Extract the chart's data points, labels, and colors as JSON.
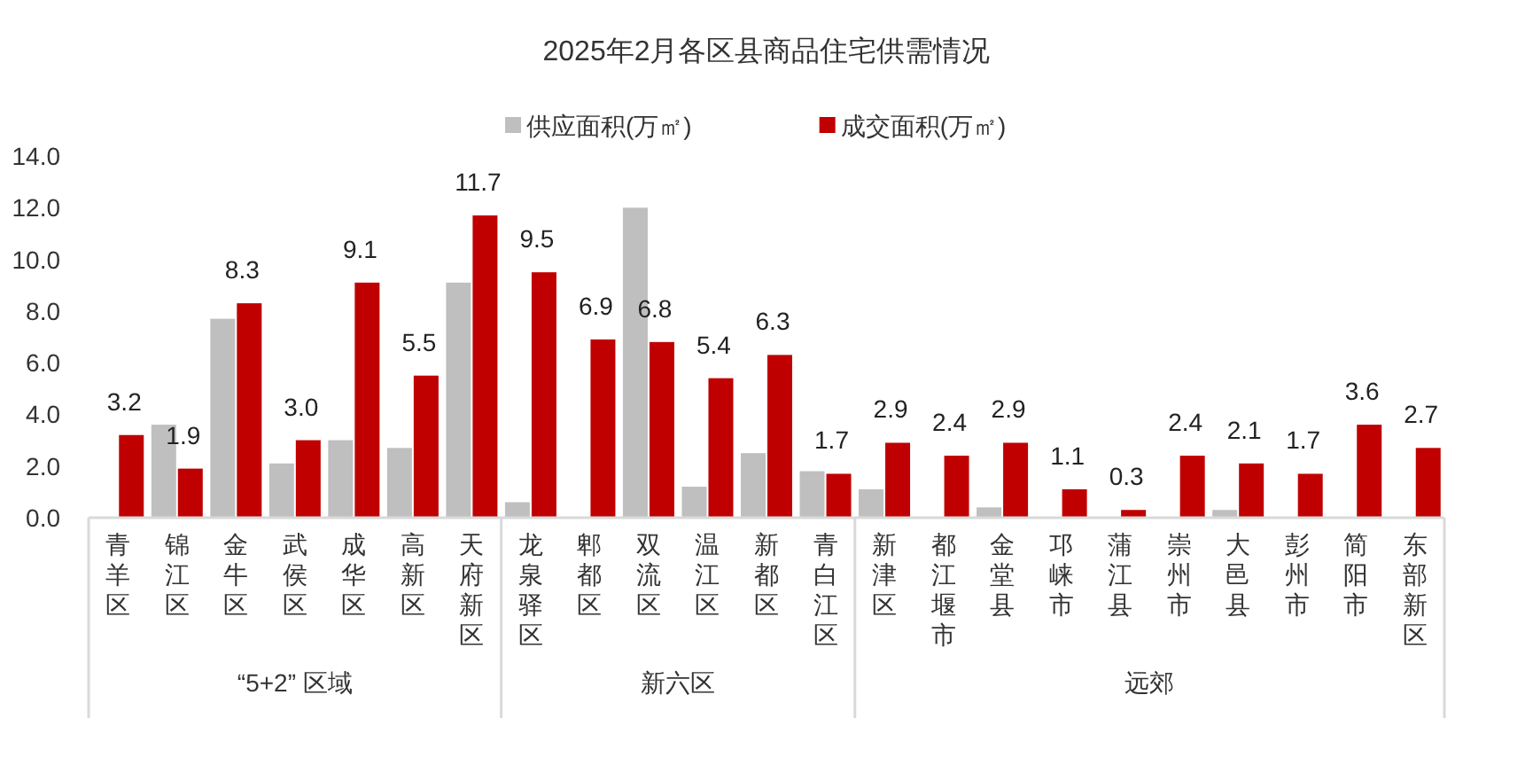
{
  "chart_data": {
    "type": "bar",
    "title": "2025年2月各区县商品住宅供需情况",
    "categories": [
      "青羊区",
      "锦江区",
      "金牛区",
      "武侯区",
      "成华区",
      "高新区",
      "天府新区",
      "龙泉驿区",
      "郫都区",
      "双流区",
      "温江区",
      "新都区",
      "青白江区",
      "新津区",
      "都江堰市",
      "金堂县",
      "邛崃市",
      "蒲江县",
      "崇州市",
      "大邑县",
      "彭州市",
      "简阳市",
      "东部新区"
    ],
    "series": [
      {
        "name": "供应面积(万㎡)",
        "color": "#bfbfbf",
        "values": [
          null,
          3.6,
          7.7,
          2.1,
          3.0,
          2.7,
          9.1,
          0.6,
          null,
          12.0,
          1.2,
          2.5,
          1.8,
          1.1,
          null,
          0.4,
          null,
          null,
          null,
          0.3,
          null,
          null,
          null
        ]
      },
      {
        "name": "成交面积(万㎡)",
        "color": "#c00000",
        "values": [
          3.2,
          1.9,
          8.3,
          3.0,
          9.1,
          5.5,
          11.7,
          9.5,
          6.9,
          6.8,
          5.4,
          6.3,
          1.7,
          2.9,
          2.4,
          2.9,
          1.1,
          0.3,
          2.4,
          2.1,
          1.7,
          3.6,
          2.7
        ],
        "value_labels": [
          "3.2",
          "1.9",
          "8.3",
          "3.0",
          "9.1",
          "5.5",
          "11.7",
          "9.5",
          "6.9",
          "6.8",
          "5.4",
          "6.3",
          "1.7",
          "2.9",
          "2.4",
          "2.9",
          "1.1",
          "0.3",
          "2.4",
          "2.1",
          "1.7",
          "3.6",
          "2.7"
        ]
      }
    ],
    "ylim": [
      0,
      14
    ],
    "yticks": [
      {
        "value": 0,
        "label": "0.0"
      },
      {
        "value": 2,
        "label": "2.0"
      },
      {
        "value": 4,
        "label": "4.0"
      },
      {
        "value": 6,
        "label": "6.0"
      },
      {
        "value": 8,
        "label": "8.0"
      },
      {
        "value": 10,
        "label": "10.0"
      },
      {
        "value": 12,
        "label": "12.0"
      },
      {
        "value": 14,
        "label": "14.0"
      }
    ],
    "annotations": [
      "“5+2” 区域",
      "新六区",
      "远郊"
    ],
    "grid": false,
    "legend": "top"
  }
}
